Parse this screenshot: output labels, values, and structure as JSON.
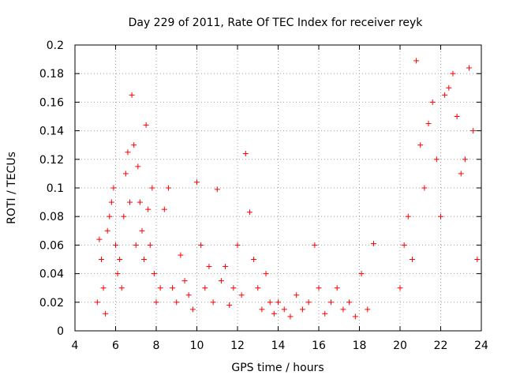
{
  "chart_data": {
    "type": "scatter",
    "title": "Day 229 of 2011, Rate Of TEC Index for receiver reyk",
    "xlabel": "GPS time / hours",
    "ylabel": "ROTI / TECUs",
    "xlim": [
      4,
      24
    ],
    "ylim": [
      0,
      0.2
    ],
    "xticks": [
      4,
      6,
      8,
      10,
      12,
      14,
      16,
      18,
      20,
      22,
      24
    ],
    "yticks": [
      0,
      0.02,
      0.04,
      0.06,
      0.08,
      0.1,
      0.12,
      0.14,
      0.16,
      0.18,
      0.2
    ],
    "xtick_labels": [
      "4",
      "6",
      "8",
      "10",
      "12",
      "14",
      "16",
      "18",
      "20",
      "22",
      "24"
    ],
    "ytick_labels": [
      "0",
      "0.02",
      "0.04",
      "0.06",
      "0.08",
      "0.1",
      "0.12",
      "0.14",
      "0.16",
      "0.18",
      "0.2"
    ],
    "grid": true,
    "marker": "plus",
    "color": "#ff0000",
    "data_gap_hours": [
      18.85,
      19.95
    ],
    "series": [
      {
        "name": "ROTI",
        "x": [
          5.1,
          5.2,
          5.3,
          5.4,
          5.5,
          5.6,
          5.7,
          5.8,
          5.9,
          6.0,
          6.1,
          6.2,
          6.3,
          6.4,
          6.5,
          6.6,
          6.7,
          6.8,
          6.9,
          7.0,
          7.1,
          7.2,
          7.3,
          7.4,
          7.5,
          7.6,
          7.7,
          7.8,
          7.9,
          8.0,
          8.2,
          8.4,
          8.6,
          8.8,
          9.0,
          9.2,
          9.4,
          9.6,
          9.8,
          10.0,
          10.2,
          10.4,
          10.6,
          10.8,
          11.0,
          11.2,
          11.4,
          11.6,
          11.8,
          12.0,
          12.2,
          12.4,
          12.6,
          12.8,
          13.0,
          13.2,
          13.4,
          13.6,
          13.8,
          14.0,
          14.3,
          14.6,
          14.9,
          15.2,
          15.5,
          15.8,
          16.0,
          16.3,
          16.6,
          16.9,
          17.2,
          17.5,
          17.8,
          18.1,
          18.4,
          18.7,
          20.0,
          20.2,
          20.4,
          20.6,
          20.8,
          21.0,
          21.2,
          21.4,
          21.6,
          21.8,
          22.0,
          22.2,
          22.4,
          22.6,
          22.8,
          23.0,
          23.2,
          23.4,
          23.6,
          23.8
        ],
        "y": [
          0.02,
          0.064,
          0.05,
          0.03,
          0.012,
          0.07,
          0.08,
          0.09,
          0.1,
          0.06,
          0.04,
          0.05,
          0.03,
          0.08,
          0.11,
          0.125,
          0.09,
          0.165,
          0.13,
          0.06,
          0.115,
          0.09,
          0.07,
          0.05,
          0.144,
          0.085,
          0.06,
          0.1,
          0.04,
          0.02,
          0.03,
          0.085,
          0.1,
          0.03,
          0.02,
          0.053,
          0.035,
          0.025,
          0.015,
          0.104,
          0.06,
          0.03,
          0.045,
          0.02,
          0.099,
          0.035,
          0.045,
          0.018,
          0.03,
          0.06,
          0.025,
          0.124,
          0.083,
          0.05,
          0.03,
          0.015,
          0.04,
          0.02,
          0.012,
          0.02,
          0.015,
          0.01,
          0.025,
          0.015,
          0.02,
          0.06,
          0.03,
          0.012,
          0.02,
          0.03,
          0.015,
          0.02,
          0.01,
          0.04,
          0.015,
          0.061,
          0.03,
          0.06,
          0.08,
          0.05,
          0.189,
          0.13,
          0.1,
          0.145,
          0.16,
          0.12,
          0.08,
          0.165,
          0.17,
          0.18,
          0.15,
          0.11,
          0.12,
          0.184,
          0.14,
          0.05
        ]
      }
    ]
  }
}
